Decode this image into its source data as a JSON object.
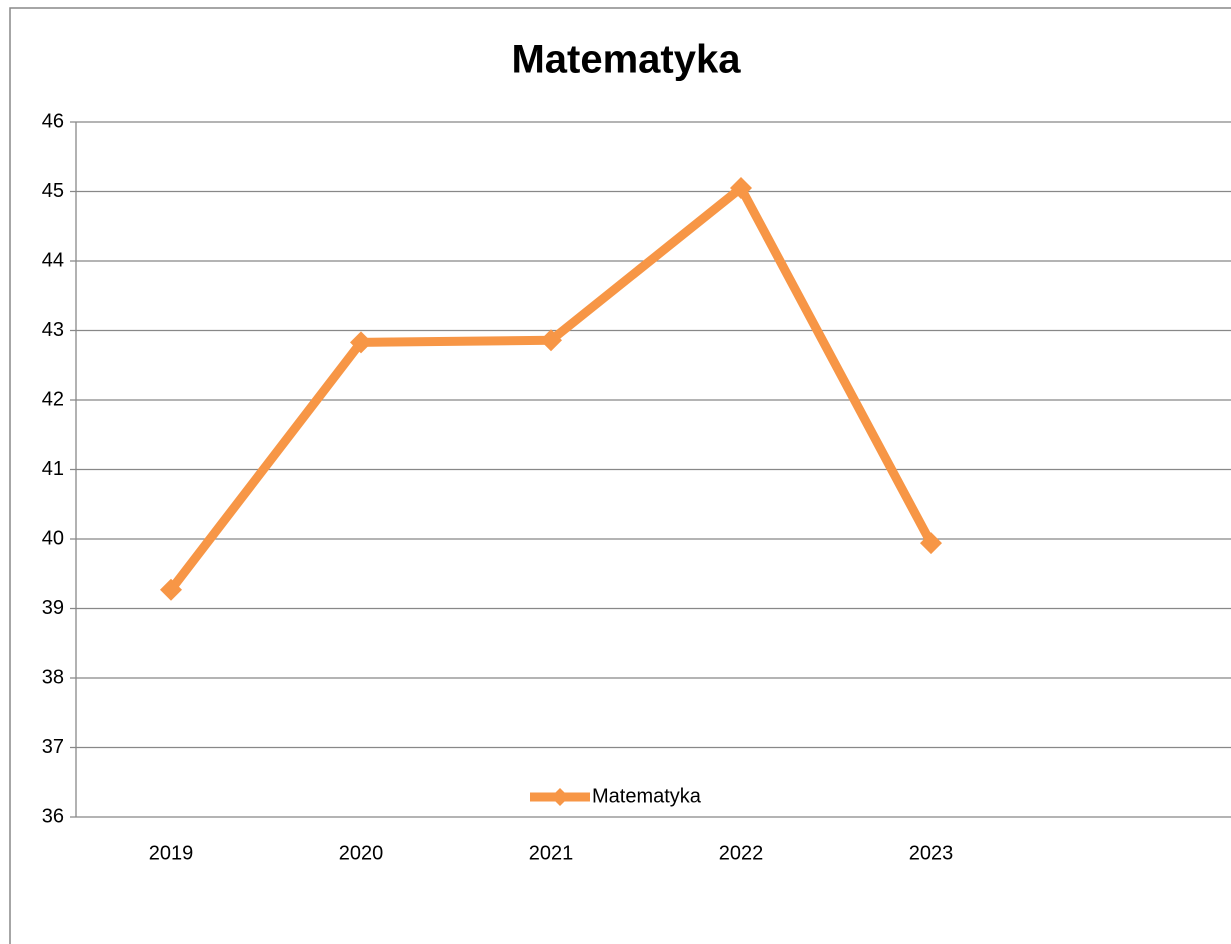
{
  "chart_data": {
    "type": "line",
    "title": "Matematyka",
    "categories": [
      "2019",
      "2020",
      "2021",
      "2022",
      "2023",
      null
    ],
    "series": [
      {
        "name": "Matematyka",
        "color": "#f79646",
        "values": [
          39.27,
          42.83,
          42.86,
          45.05,
          39.94,
          null
        ]
      }
    ],
    "ylim": [
      36,
      46
    ],
    "yticks": [
      36,
      37,
      38,
      39,
      40,
      41,
      42,
      43,
      44,
      45,
      46
    ],
    "grid": true,
    "legend": "bottom"
  }
}
